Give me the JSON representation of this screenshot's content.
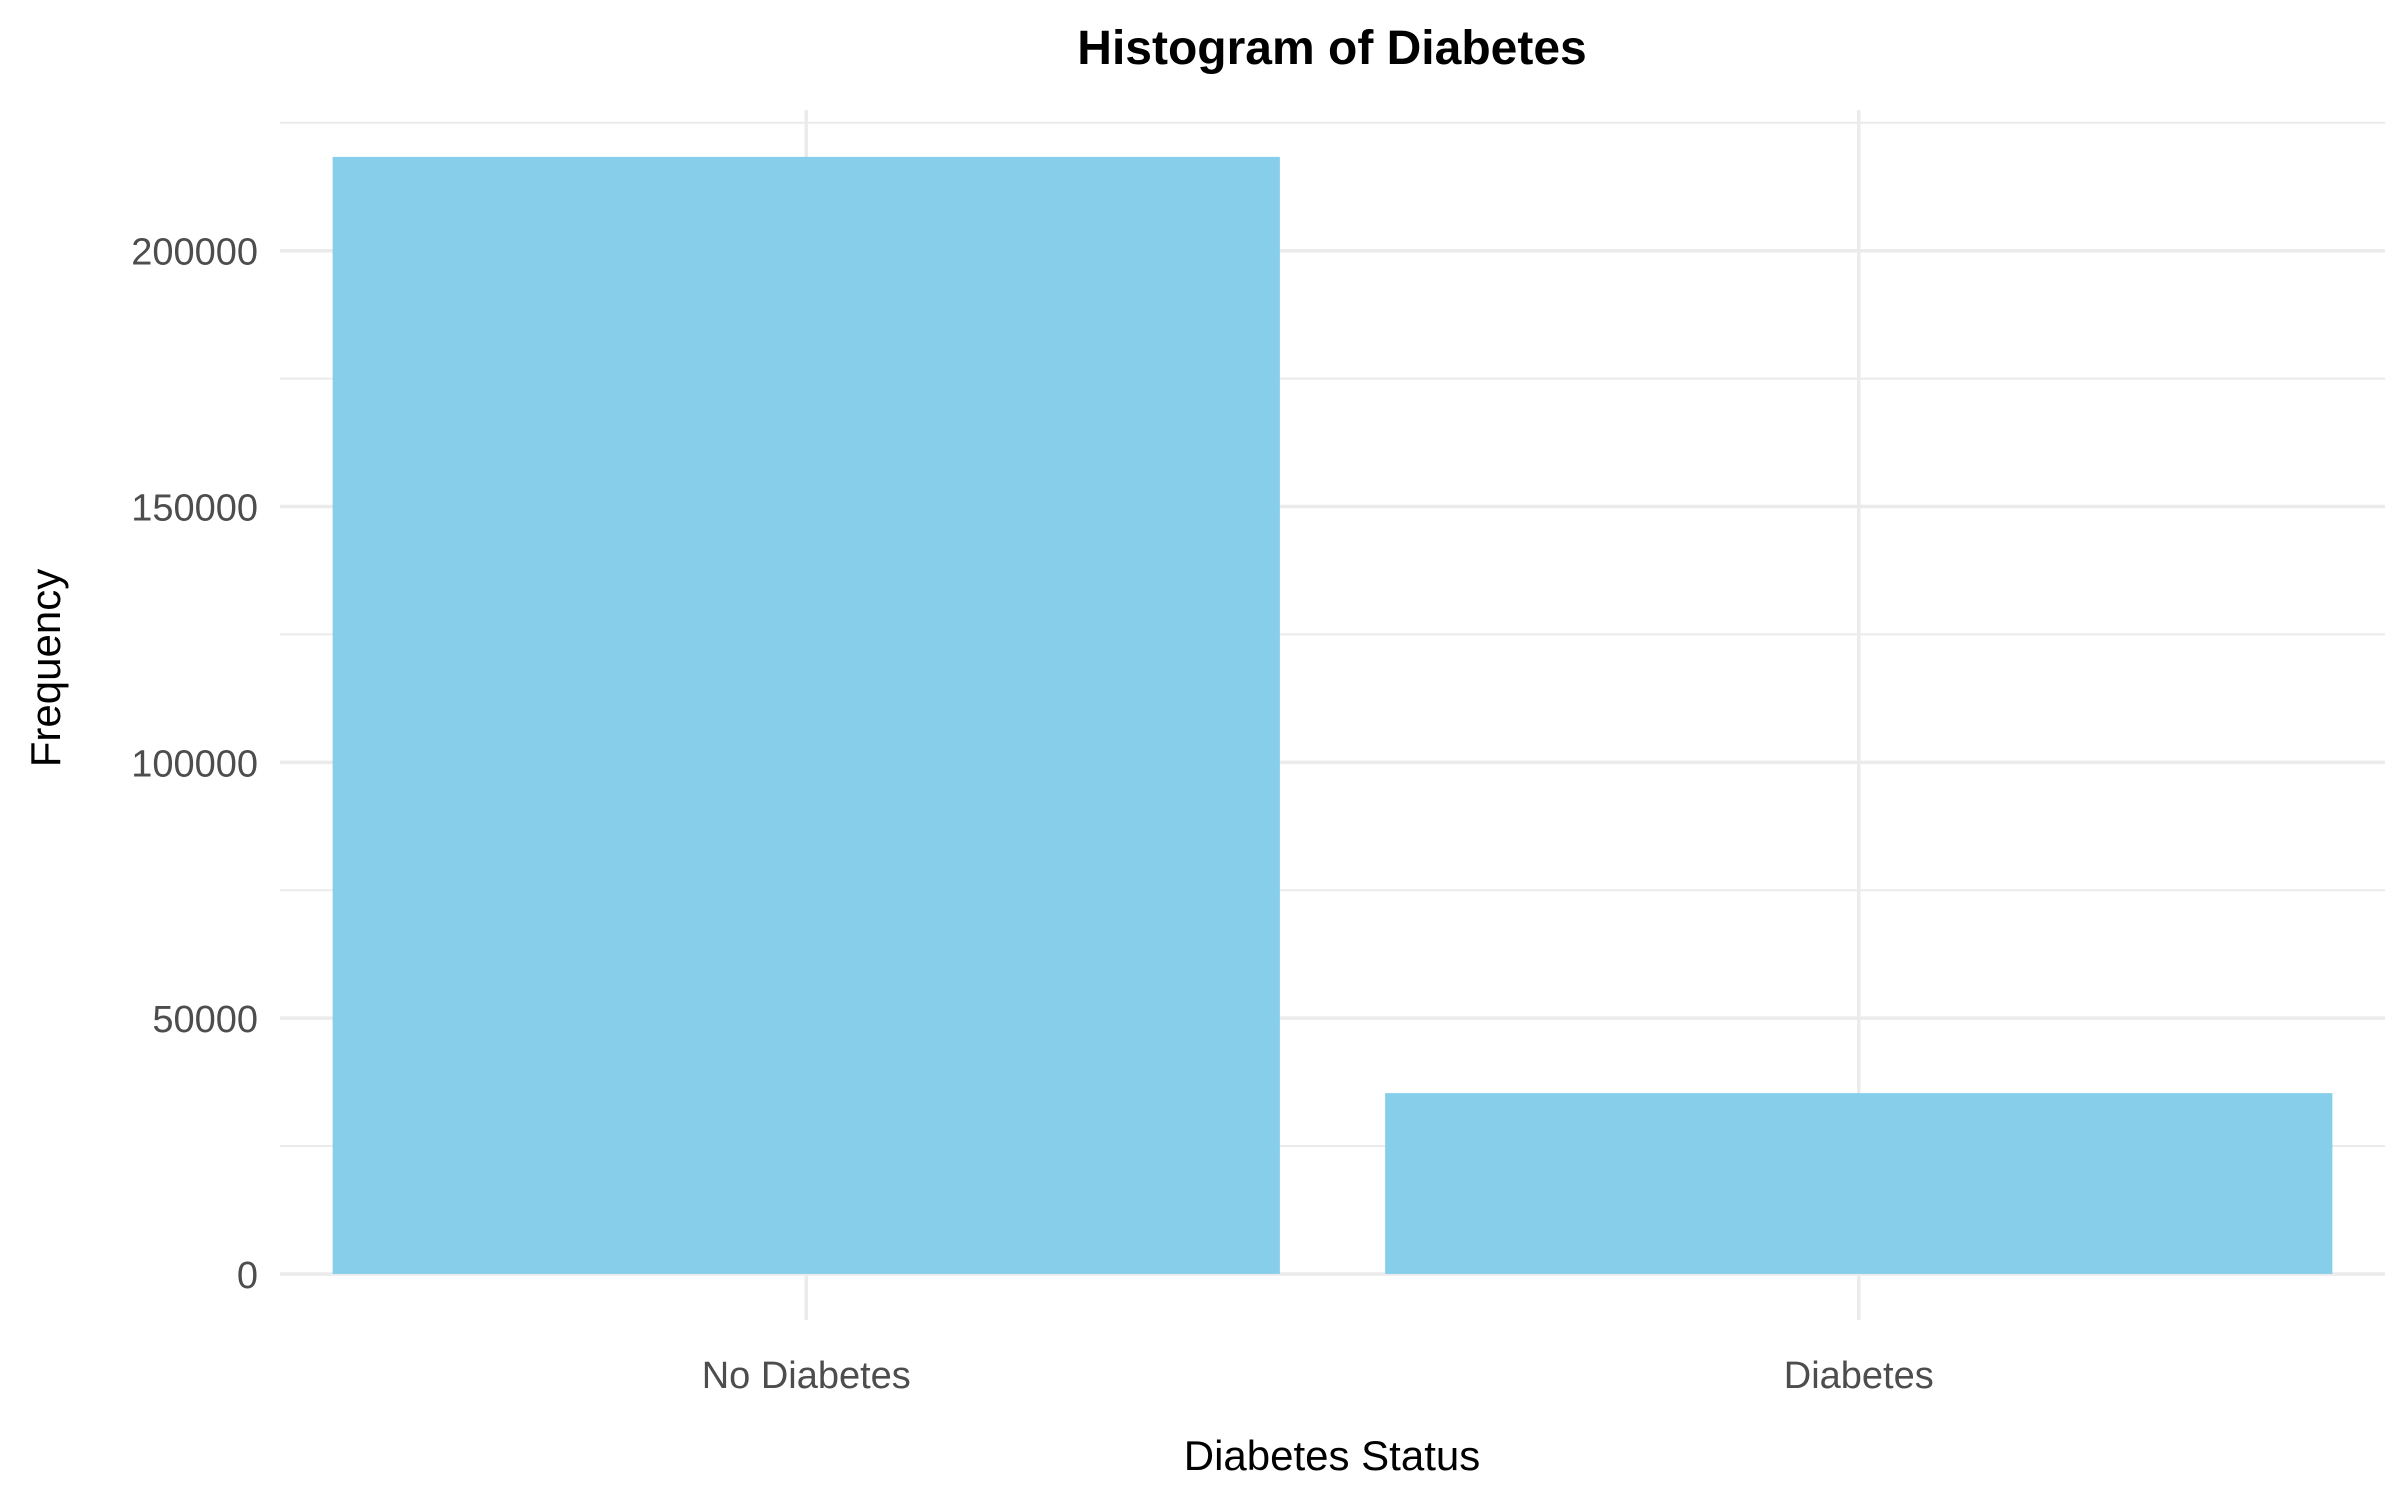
{
  "chart_data": {
    "type": "bar",
    "title": "Histogram of Diabetes",
    "xlabel": "Diabetes Status",
    "ylabel": "Frequency",
    "categories": [
      "No Diabetes",
      "Diabetes"
    ],
    "values": [
      218334,
      35346
    ],
    "ylim": [
      -9000,
      227500
    ],
    "yticks": [
      0,
      50000,
      100000,
      150000,
      200000
    ],
    "ytick_labels": [
      "0",
      "50000",
      "100000",
      "150000",
      "200000"
    ],
    "minor_yticks": [
      25000,
      75000,
      125000,
      175000,
      225000
    ],
    "grid": true,
    "legend": "none",
    "colors": {
      "bar": "#87CEEB",
      "grid": "#EBEBEB",
      "tick_text": "#4D4D4D",
      "label_text": "#000000"
    }
  }
}
